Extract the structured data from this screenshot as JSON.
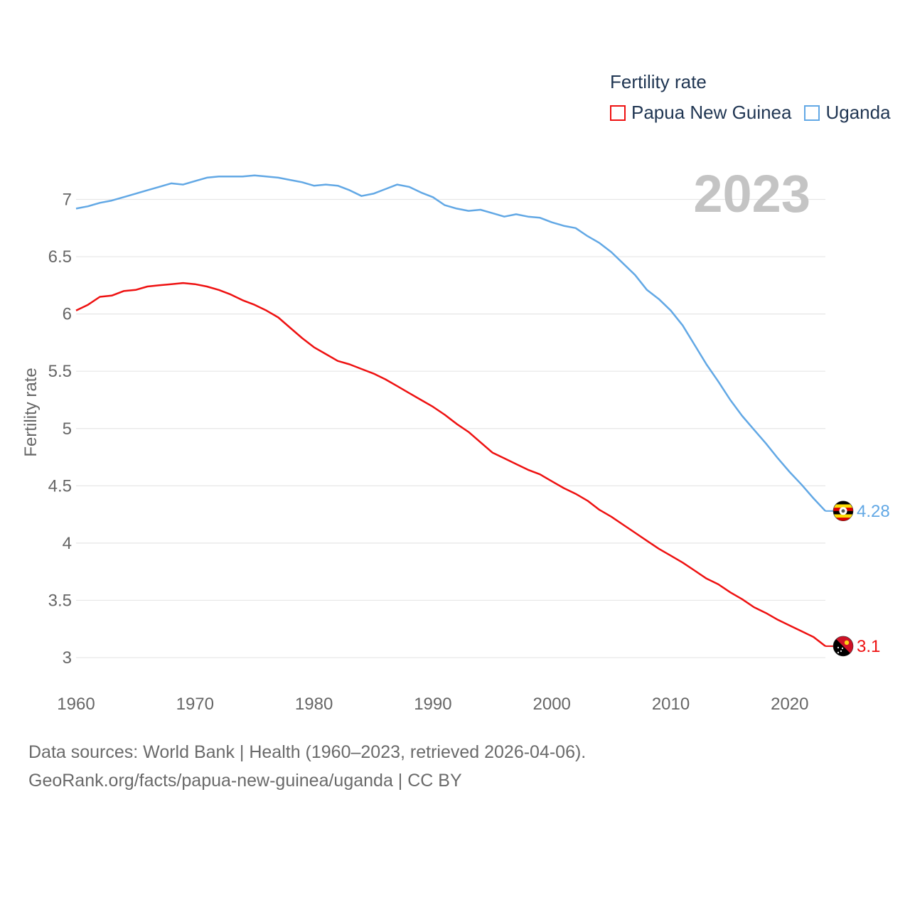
{
  "chart_data": {
    "type": "line",
    "title": "Fertility rate",
    "ylabel": "Fertility rate",
    "xlabel": "",
    "year_label": "2023",
    "xlim": [
      1960,
      2023
    ],
    "ylim": [
      2.9,
      7.25
    ],
    "x_ticks": [
      1960,
      1970,
      1980,
      1990,
      2000,
      2010,
      2020
    ],
    "y_ticks": [
      3,
      3.5,
      4,
      4.5,
      5,
      5.5,
      6,
      6.5,
      7
    ],
    "y_tick_labels": [
      "3",
      "3.5",
      "4",
      "4.5",
      "5",
      "5.5",
      "6",
      "6.5",
      "7"
    ],
    "grid": true,
    "legend_position": "top-right",
    "x": [
      1960,
      1961,
      1962,
      1963,
      1964,
      1965,
      1966,
      1967,
      1968,
      1969,
      1970,
      1971,
      1972,
      1973,
      1974,
      1975,
      1976,
      1977,
      1978,
      1979,
      1980,
      1981,
      1982,
      1983,
      1984,
      1985,
      1986,
      1987,
      1988,
      1989,
      1990,
      1991,
      1992,
      1993,
      1994,
      1995,
      1996,
      1997,
      1998,
      1999,
      2000,
      2001,
      2002,
      2003,
      2004,
      2005,
      2006,
      2007,
      2008,
      2009,
      2010,
      2011,
      2012,
      2013,
      2014,
      2015,
      2016,
      2017,
      2018,
      2019,
      2020,
      2021,
      2022,
      2023
    ],
    "series": [
      {
        "name": "Papua New Guinea",
        "color": "#ee1111",
        "end_label": "3.1",
        "flag": "papua-new-guinea-flag",
        "values": [
          6.03,
          6.08,
          6.15,
          6.16,
          6.2,
          6.21,
          6.24,
          6.25,
          6.26,
          6.27,
          6.26,
          6.24,
          6.21,
          6.17,
          6.12,
          6.08,
          6.03,
          5.97,
          5.88,
          5.79,
          5.71,
          5.65,
          5.59,
          5.56,
          5.52,
          5.48,
          5.43,
          5.37,
          5.31,
          5.25,
          5.19,
          5.12,
          5.04,
          4.97,
          4.88,
          4.79,
          4.74,
          4.69,
          4.64,
          4.6,
          4.54,
          4.48,
          4.43,
          4.37,
          4.29,
          4.23,
          4.16,
          4.09,
          4.02,
          3.95,
          3.89,
          3.83,
          3.76,
          3.69,
          3.64,
          3.57,
          3.51,
          3.44,
          3.39,
          3.33,
          3.28,
          3.23,
          3.18,
          3.1
        ]
      },
      {
        "name": "Uganda",
        "color": "#62a8e5",
        "end_label": "4.28",
        "flag": "uganda-flag",
        "values": [
          6.92,
          6.94,
          6.97,
          6.99,
          7.02,
          7.05,
          7.08,
          7.11,
          7.14,
          7.13,
          7.16,
          7.19,
          7.2,
          7.2,
          7.2,
          7.21,
          7.2,
          7.19,
          7.17,
          7.15,
          7.12,
          7.13,
          7.12,
          7.08,
          7.03,
          7.05,
          7.09,
          7.13,
          7.11,
          7.06,
          7.02,
          6.95,
          6.92,
          6.9,
          6.91,
          6.88,
          6.85,
          6.87,
          6.85,
          6.84,
          6.8,
          6.77,
          6.75,
          6.68,
          6.62,
          6.54,
          6.44,
          6.34,
          6.21,
          6.13,
          6.03,
          5.9,
          5.73,
          5.56,
          5.41,
          5.25,
          5.11,
          4.99,
          4.87,
          4.74,
          4.62,
          4.51,
          4.39,
          4.28
        ]
      }
    ]
  },
  "source": {
    "line1": "Data sources: World Bank | Health (1960–2023, retrieved 2026-04-06).",
    "line2": "GeoRank.org/facts/papua-new-guinea/uganda | CC BY"
  }
}
